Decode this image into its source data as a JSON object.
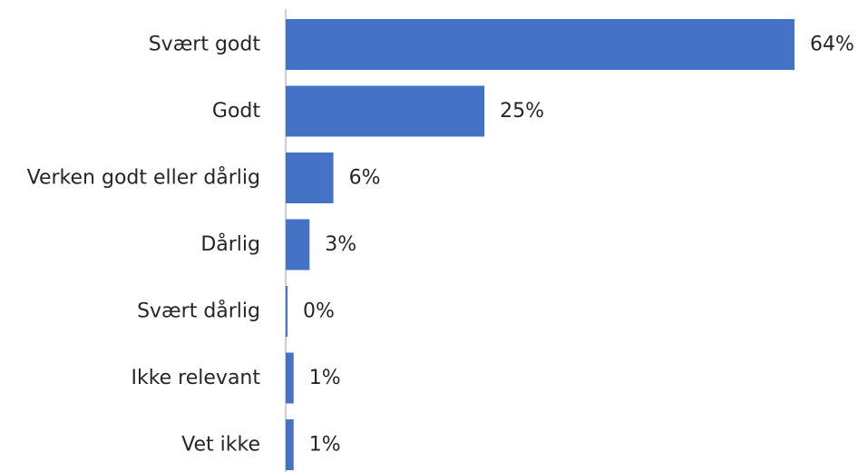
{
  "chart_data": {
    "type": "bar",
    "orientation": "horizontal",
    "categories": [
      "Svært godt",
      "Godt",
      "Verken godt eller dårlig",
      "Dårlig",
      "Svært dårlig",
      "Ikke relevant",
      "Vet ikke"
    ],
    "values": [
      64,
      25,
      6,
      3,
      0,
      1,
      1
    ],
    "value_labels": [
      "64%",
      "25%",
      "6%",
      "3%",
      "0%",
      "1%",
      "1%"
    ],
    "value_unit": "%",
    "title": "",
    "xlabel": "",
    "ylabel": "",
    "xlim": [
      0,
      64
    ],
    "grid": false,
    "legend": "none",
    "colors": {
      "bar": "#4472C4",
      "axis": "#BFBFBF",
      "text": "#262626"
    }
  }
}
